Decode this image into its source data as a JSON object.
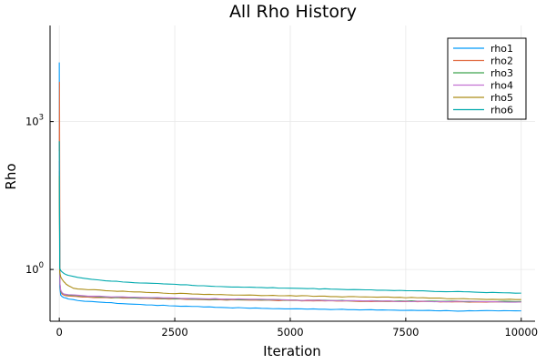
{
  "chart_data": {
    "type": "line",
    "title": "All Rho History",
    "xlabel": "Iteration",
    "ylabel": "Rho",
    "xlim": [
      -200,
      10300
    ],
    "xticks": [
      0,
      2500,
      5000,
      7500,
      10000
    ],
    "xtick_labels": [
      "0",
      "2500",
      "5000",
      "7500",
      "10000"
    ],
    "ylog": true,
    "ylim_log10": [
      -1.05,
      4.95
    ],
    "yticks_base": "10",
    "yticks": [
      {
        "exp": "3",
        "value_log10": 3
      },
      {
        "exp": "0",
        "value_log10": 0
      }
    ],
    "grid": true,
    "legend_position": "top-right",
    "series": [
      {
        "name": "rho1",
        "color": "#009af9",
        "x": [
          0,
          10,
          30,
          60,
          100,
          200,
          400,
          700,
          1000,
          1500,
          2000,
          2500,
          3000,
          3500,
          4000,
          4500,
          5000,
          5500,
          6000,
          6500,
          7000,
          7500,
          8000,
          8500,
          9000,
          9500,
          10000
        ],
        "y": [
          4.2,
          -0.35,
          -0.52,
          -0.55,
          -0.57,
          -0.6,
          -0.63,
          -0.65,
          -0.67,
          -0.7,
          -0.72,
          -0.74,
          -0.75,
          -0.77,
          -0.78,
          -0.79,
          -0.8,
          -0.8,
          -0.81,
          -0.82,
          -0.82,
          -0.83,
          -0.83,
          -0.84,
          -0.84,
          -0.84,
          -0.84
        ]
      },
      {
        "name": "rho2",
        "color": "#e26f46",
        "x": [
          0,
          5,
          15,
          30,
          60,
          100,
          200,
          500,
          1000,
          2000,
          3000,
          4000,
          5000,
          6000,
          7000,
          8000,
          9000,
          10000
        ],
        "y": [
          2.4,
          3.8,
          -0.3,
          -0.45,
          -0.5,
          -0.52,
          -0.54,
          -0.56,
          -0.57,
          -0.59,
          -0.61,
          -0.62,
          -0.63,
          -0.64,
          -0.65,
          -0.65,
          -0.66,
          -0.66
        ]
      },
      {
        "name": "rho3",
        "color": "#3da44d",
        "x": [
          0,
          15,
          30,
          60,
          100,
          200,
          500,
          1000,
          2000,
          3000,
          4000,
          5000,
          6000,
          7000,
          8000,
          9000,
          10000
        ],
        "y": [
          2.0,
          -0.3,
          -0.44,
          -0.48,
          -0.5,
          -0.52,
          -0.54,
          -0.56,
          -0.58,
          -0.6,
          -0.61,
          -0.62,
          -0.63,
          -0.64,
          -0.64,
          -0.65,
          -0.65
        ]
      },
      {
        "name": "rho4",
        "color": "#c271d2",
        "x": [
          0,
          15,
          30,
          60,
          100,
          200,
          500,
          1000,
          2000,
          3000,
          4000,
          5000,
          6000,
          7000,
          8000,
          9000,
          10000
        ],
        "y": [
          2.2,
          -0.28,
          -0.42,
          -0.47,
          -0.5,
          -0.51,
          -0.53,
          -0.55,
          -0.57,
          -0.59,
          -0.6,
          -0.62,
          -0.63,
          -0.64,
          -0.65,
          -0.65,
          -0.66
        ]
      },
      {
        "name": "rho5",
        "color": "#ac8d18",
        "x": [
          0,
          10,
          30,
          60,
          100,
          150,
          200,
          300,
          500,
          1000,
          1500,
          2000,
          3000,
          4000,
          5000,
          6000,
          7000,
          8000,
          9000,
          10000
        ],
        "y": [
          1.9,
          -0.05,
          -0.15,
          -0.2,
          -0.25,
          -0.3,
          -0.33,
          -0.38,
          -0.4,
          -0.43,
          -0.45,
          -0.47,
          -0.5,
          -0.52,
          -0.53,
          -0.55,
          -0.56,
          -0.58,
          -0.6,
          -0.61
        ]
      },
      {
        "name": "rho6",
        "color": "#00a9ad",
        "x": [
          0,
          10,
          30,
          60,
          100,
          200,
          400,
          700,
          1000,
          1500,
          2000,
          2500,
          3000,
          4000,
          5000,
          6000,
          7000,
          8000,
          9000,
          10000
        ],
        "y": [
          2.6,
          0.02,
          -0.02,
          -0.05,
          -0.08,
          -0.12,
          -0.16,
          -0.2,
          -0.23,
          -0.26,
          -0.28,
          -0.3,
          -0.33,
          -0.36,
          -0.38,
          -0.4,
          -0.42,
          -0.44,
          -0.46,
          -0.48
        ]
      }
    ]
  }
}
